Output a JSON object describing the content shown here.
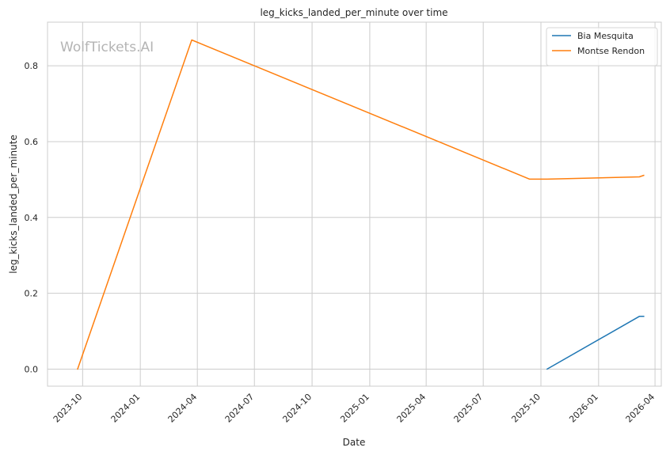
{
  "chart_data": {
    "type": "line",
    "title": "leg_kicks_landed_per_minute over time",
    "xlabel": "Date",
    "ylabel": "leg_kicks_landed_per_minute",
    "x_ticks": [
      "2023-10",
      "2024-01",
      "2024-04",
      "2024-07",
      "2024-10",
      "2025-01",
      "2025-04",
      "2025-07",
      "2025-10",
      "2026-01",
      "2026-04"
    ],
    "y_ticks": [
      "0.0",
      "0.2",
      "0.4",
      "0.6",
      "0.8"
    ],
    "xlim": [
      "2023-08-06",
      "2026-04-11"
    ],
    "ylim": [
      -0.045,
      0.915
    ],
    "grid": true,
    "legend_position": "top-right",
    "watermark": "WolfTickets.AI",
    "series": [
      {
        "name": "Bia Mesquita",
        "color": "#1f77b4",
        "points": [
          {
            "x": "2025-10-11",
            "y": 0.0
          },
          {
            "x": "2026-03-07",
            "y": 0.139
          },
          {
            "x": "2026-03-14",
            "y": 0.139
          }
        ]
      },
      {
        "name": "Montse Rendon",
        "color": "#ff7f0e",
        "points": [
          {
            "x": "2023-09-23",
            "y": 0.0
          },
          {
            "x": "2024-03-23",
            "y": 0.868
          },
          {
            "x": "2025-09-13",
            "y": 0.501
          },
          {
            "x": "2025-10-11",
            "y": 0.501
          },
          {
            "x": "2026-03-07",
            "y": 0.507
          },
          {
            "x": "2026-03-14",
            "y": 0.511
          }
        ]
      }
    ]
  }
}
